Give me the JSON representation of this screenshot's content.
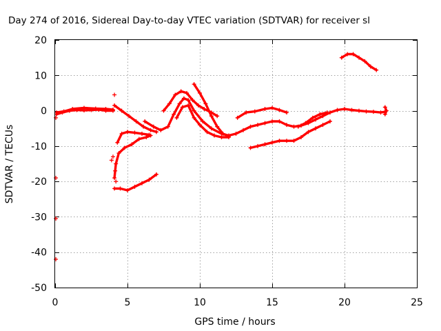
{
  "chart_data": {
    "type": "scatter",
    "title": "Day 274 of 2016, Sidereal Day-to-day VTEC variation (SDTVAR) for receiver sl",
    "xlabel": "GPS time / hours",
    "ylabel": "SDTVAR / TECUs",
    "xlim": [
      0,
      25
    ],
    "ylim": [
      -50,
      20
    ],
    "xticks": [
      0,
      5,
      10,
      15,
      20,
      25
    ],
    "yticks": [
      -50,
      -40,
      -30,
      -20,
      -10,
      0,
      10,
      20
    ],
    "xtick_labels": [
      "0",
      "5",
      "10",
      "15",
      "20",
      "25"
    ],
    "ytick_labels": [
      "-50",
      "-40",
      "-30",
      "-20",
      "-10",
      "0",
      "10",
      "20"
    ],
    "grid": true,
    "marker": "+",
    "color": "#ff0000",
    "series": [
      {
        "points": [
          [
            0.1,
            -1
          ],
          [
            0.5,
            -0.5
          ],
          [
            1.0,
            0
          ],
          [
            1.5,
            0.2
          ],
          [
            2.0,
            0.1
          ],
          [
            2.5,
            0.2
          ],
          [
            3.0,
            0.3
          ],
          [
            3.5,
            0
          ],
          [
            4.0,
            0
          ]
        ]
      },
      {
        "points": [
          [
            0.1,
            -0.5
          ],
          [
            0.6,
            -0.2
          ],
          [
            1.2,
            0.5
          ],
          [
            2.0,
            0.8
          ],
          [
            2.8,
            0.6
          ],
          [
            3.5,
            0.5
          ],
          [
            4.0,
            0.3
          ]
        ]
      },
      {
        "points": [
          [
            4.1,
            1.5
          ],
          [
            4.6,
            0
          ],
          [
            5.1,
            -1.5
          ],
          [
            5.6,
            -3
          ],
          [
            6.1,
            -4.5
          ],
          [
            6.6,
            -5.5
          ],
          [
            7.0,
            -6
          ]
        ]
      },
      {
        "points": [
          [
            4.1,
            -22
          ],
          [
            4.5,
            -22
          ],
          [
            5.0,
            -22.5
          ],
          [
            5.5,
            -21.5
          ],
          [
            6.0,
            -20.5
          ],
          [
            6.5,
            -19.5
          ],
          [
            7.0,
            -18
          ]
        ]
      },
      {
        "points": [
          [
            4.1,
            -19
          ],
          [
            4.2,
            -15
          ],
          [
            4.4,
            -12
          ],
          [
            4.8,
            -10.5
          ],
          [
            5.3,
            -9.5
          ],
          [
            5.8,
            -8
          ],
          [
            6.3,
            -7.5
          ],
          [
            6.6,
            -7
          ]
        ]
      },
      {
        "points": [
          [
            4.3,
            -9
          ],
          [
            4.6,
            -6.5
          ],
          [
            5.0,
            -6
          ],
          [
            5.5,
            -6.2
          ],
          [
            6.0,
            -6.5
          ],
          [
            6.5,
            -6.8
          ]
        ]
      },
      {
        "points": [
          [
            6.2,
            -3
          ],
          [
            6.8,
            -4.5
          ],
          [
            7.3,
            -5.5
          ],
          [
            7.8,
            -4.5
          ],
          [
            8.2,
            -1
          ],
          [
            8.6,
            2
          ],
          [
            8.9,
            3.5
          ],
          [
            9.2,
            3
          ],
          [
            9.6,
            0
          ],
          [
            10.2,
            -3
          ],
          [
            10.8,
            -5
          ],
          [
            11.5,
            -6.5
          ],
          [
            12.0,
            -7
          ],
          [
            12.5,
            -6.5
          ],
          [
            13.0,
            -5.5
          ],
          [
            13.5,
            -4.5
          ],
          [
            14.0,
            -4
          ],
          [
            14.5,
            -3.5
          ],
          [
            15.0,
            -3
          ],
          [
            15.5,
            -3
          ],
          [
            16.0,
            -4
          ],
          [
            16.5,
            -4.5
          ],
          [
            17.0,
            -4.2
          ],
          [
            17.5,
            -3.5
          ],
          [
            18.0,
            -2.5
          ],
          [
            18.5,
            -1.5
          ],
          [
            19.0,
            -0.5
          ],
          [
            19.5,
            0.2
          ],
          [
            20.0,
            0.5
          ],
          [
            20.5,
            0.2
          ],
          [
            21.0,
            0
          ],
          [
            21.5,
            -0.2
          ],
          [
            22.0,
            -0.3
          ],
          [
            22.5,
            -0.5
          ],
          [
            22.8,
            -0.3
          ]
        ]
      },
      {
        "points": [
          [
            7.5,
            0
          ],
          [
            7.9,
            2
          ],
          [
            8.3,
            4.5
          ],
          [
            8.7,
            5.5
          ],
          [
            9.1,
            5
          ],
          [
            9.5,
            3
          ],
          [
            9.9,
            1.5
          ],
          [
            10.3,
            0.5
          ],
          [
            10.8,
            -0.5
          ],
          [
            11.2,
            -1.5
          ]
        ]
      },
      {
        "points": [
          [
            8.4,
            -2
          ],
          [
            8.8,
            1
          ],
          [
            9.2,
            1.5
          ],
          [
            9.6,
            -2
          ],
          [
            10.0,
            -4
          ],
          [
            10.5,
            -6
          ],
          [
            11.0,
            -7
          ],
          [
            11.5,
            -7.5
          ],
          [
            12.0,
            -7.5
          ]
        ]
      },
      {
        "points": [
          [
            9.6,
            7.5
          ],
          [
            10.0,
            5
          ],
          [
            10.4,
            2
          ],
          [
            10.8,
            -1.5
          ],
          [
            11.2,
            -4.5
          ],
          [
            11.6,
            -6.5
          ],
          [
            12.0,
            -7.2
          ]
        ]
      },
      {
        "points": [
          [
            12.6,
            -2
          ],
          [
            13.2,
            -0.5
          ],
          [
            13.8,
            -0.2
          ],
          [
            14.5,
            0.5
          ],
          [
            15.0,
            0.8
          ],
          [
            15.5,
            0.2
          ],
          [
            16.0,
            -0.5
          ]
        ]
      },
      {
        "points": [
          [
            13.5,
            -10.5
          ],
          [
            14.0,
            -10
          ],
          [
            14.5,
            -9.5
          ],
          [
            15.0,
            -9
          ],
          [
            15.5,
            -8.5
          ],
          [
            16.0,
            -8.5
          ],
          [
            16.5,
            -8.5
          ],
          [
            17.0,
            -7.5
          ],
          [
            17.5,
            -6
          ],
          [
            18.0,
            -5
          ],
          [
            18.5,
            -4
          ],
          [
            19.0,
            -3
          ]
        ]
      },
      {
        "points": [
          [
            16.8,
            -4.5
          ],
          [
            17.3,
            -3.5
          ],
          [
            17.8,
            -2
          ],
          [
            18.3,
            -1
          ],
          [
            18.8,
            -0.5
          ]
        ]
      },
      {
        "points": [
          [
            19.8,
            15
          ],
          [
            20.2,
            16
          ],
          [
            20.6,
            16
          ],
          [
            21.0,
            15
          ],
          [
            21.4,
            14
          ],
          [
            21.8,
            12.5
          ],
          [
            22.2,
            11.5
          ]
        ]
      },
      {
        "points": [
          [
            22.8,
            1
          ],
          [
            22.9,
            0
          ],
          [
            22.8,
            -1
          ]
        ]
      },
      {
        "points": [
          [
            4.1,
            4.5
          ],
          [
            3.9,
            -14
          ],
          [
            4.0,
            -13
          ],
          [
            0.05,
            -2
          ],
          [
            0.05,
            -19
          ],
          [
            0.05,
            -30.5
          ],
          [
            0.05,
            -42
          ],
          [
            4.15,
            -17
          ],
          [
            4.2,
            -20
          ]
        ]
      }
    ]
  }
}
